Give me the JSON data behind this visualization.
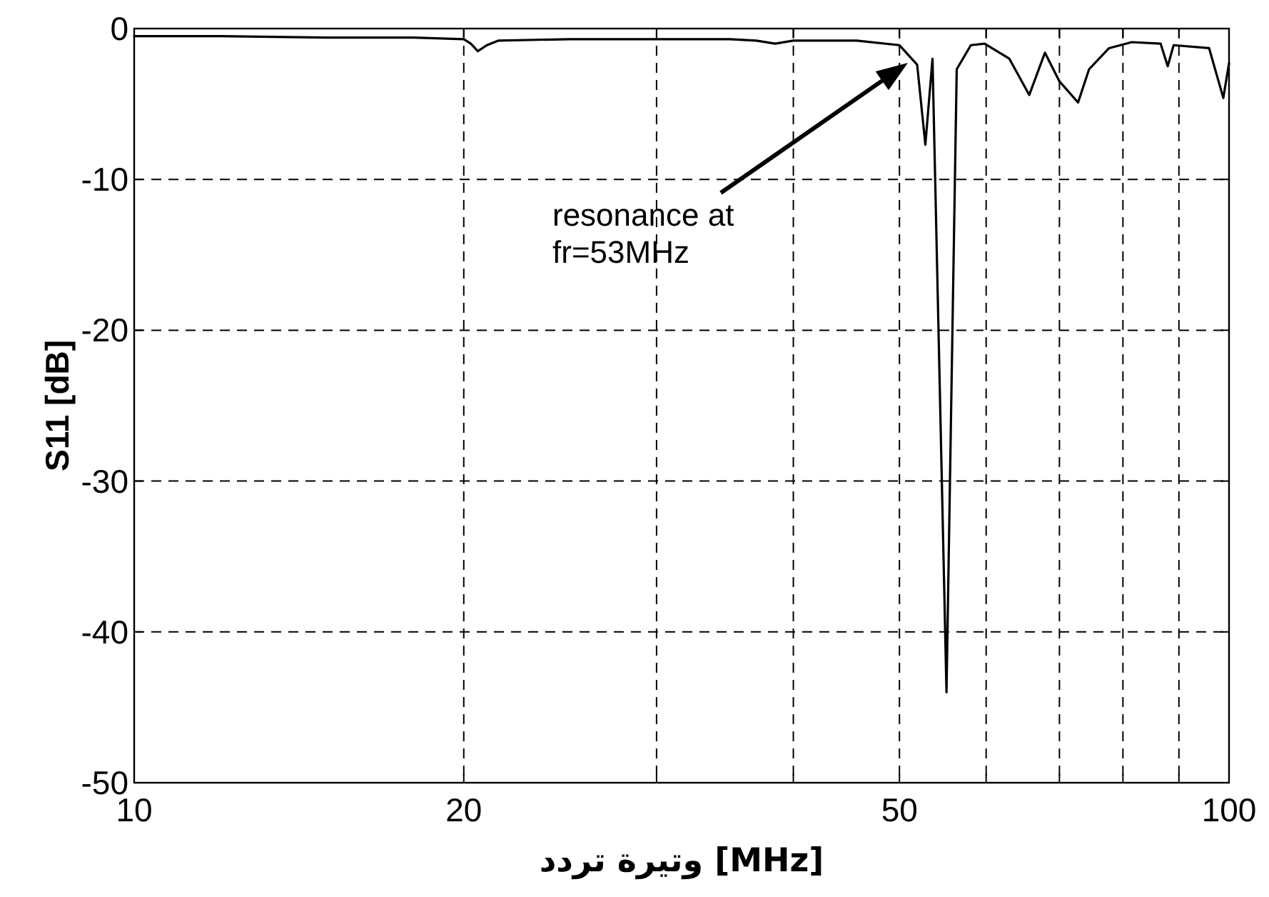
{
  "chart_data": {
    "type": "line",
    "xlabel": "وتيرة تردد [MHz]",
    "ylabel": "S11 [dB]",
    "log": "x",
    "grid": true,
    "color": "#000000",
    "x": [
      10,
      12,
      15,
      18,
      20,
      20.3,
      20.6,
      21,
      21.5,
      25,
      30,
      35,
      37,
      38.5,
      40,
      45.7,
      50,
      51.9,
      52.8,
      53.6,
      55.2,
      56.4,
      58.1,
      59.8,
      63,
      65.7,
      67.9,
      70,
      72.8,
      74.5,
      77.7,
      81.5,
      86.6,
      87.9,
      89,
      95.9,
      98.8,
      100
    ],
    "values": [
      -0.5,
      -0.5,
      -0.6,
      -0.6,
      -0.7,
      -1.0,
      -1.5,
      -1.1,
      -0.8,
      -0.7,
      -0.7,
      -0.7,
      -0.8,
      -1.0,
      -0.8,
      -0.8,
      -1.1,
      -2.4,
      -7.7,
      -2.0,
      -44,
      -2.7,
      -1.1,
      -1.0,
      -2.0,
      -4.4,
      -1.6,
      -3.5,
      -4.9,
      -2.7,
      -1.3,
      -0.9,
      -1.0,
      -2.5,
      -1.1,
      -1.3,
      -4.6,
      -2.3
    ],
    "xlim": [
      10,
      100
    ],
    "ylim": [
      -50,
      0
    ],
    "xticks": [
      10,
      20,
      {
        "value": 30,
        "label": null
      },
      {
        "value": 40,
        "label": null
      },
      50,
      {
        "value": 60,
        "label": null
      },
      {
        "value": 70,
        "label": null
      },
      {
        "value": 80,
        "label": null
      },
      {
        "value": 90,
        "label": null
      },
      100
    ],
    "yticks": [
      -50,
      -40,
      -30,
      -20,
      -10,
      0
    ],
    "annotations": [
      "resonance at fr=53MHz"
    ]
  }
}
